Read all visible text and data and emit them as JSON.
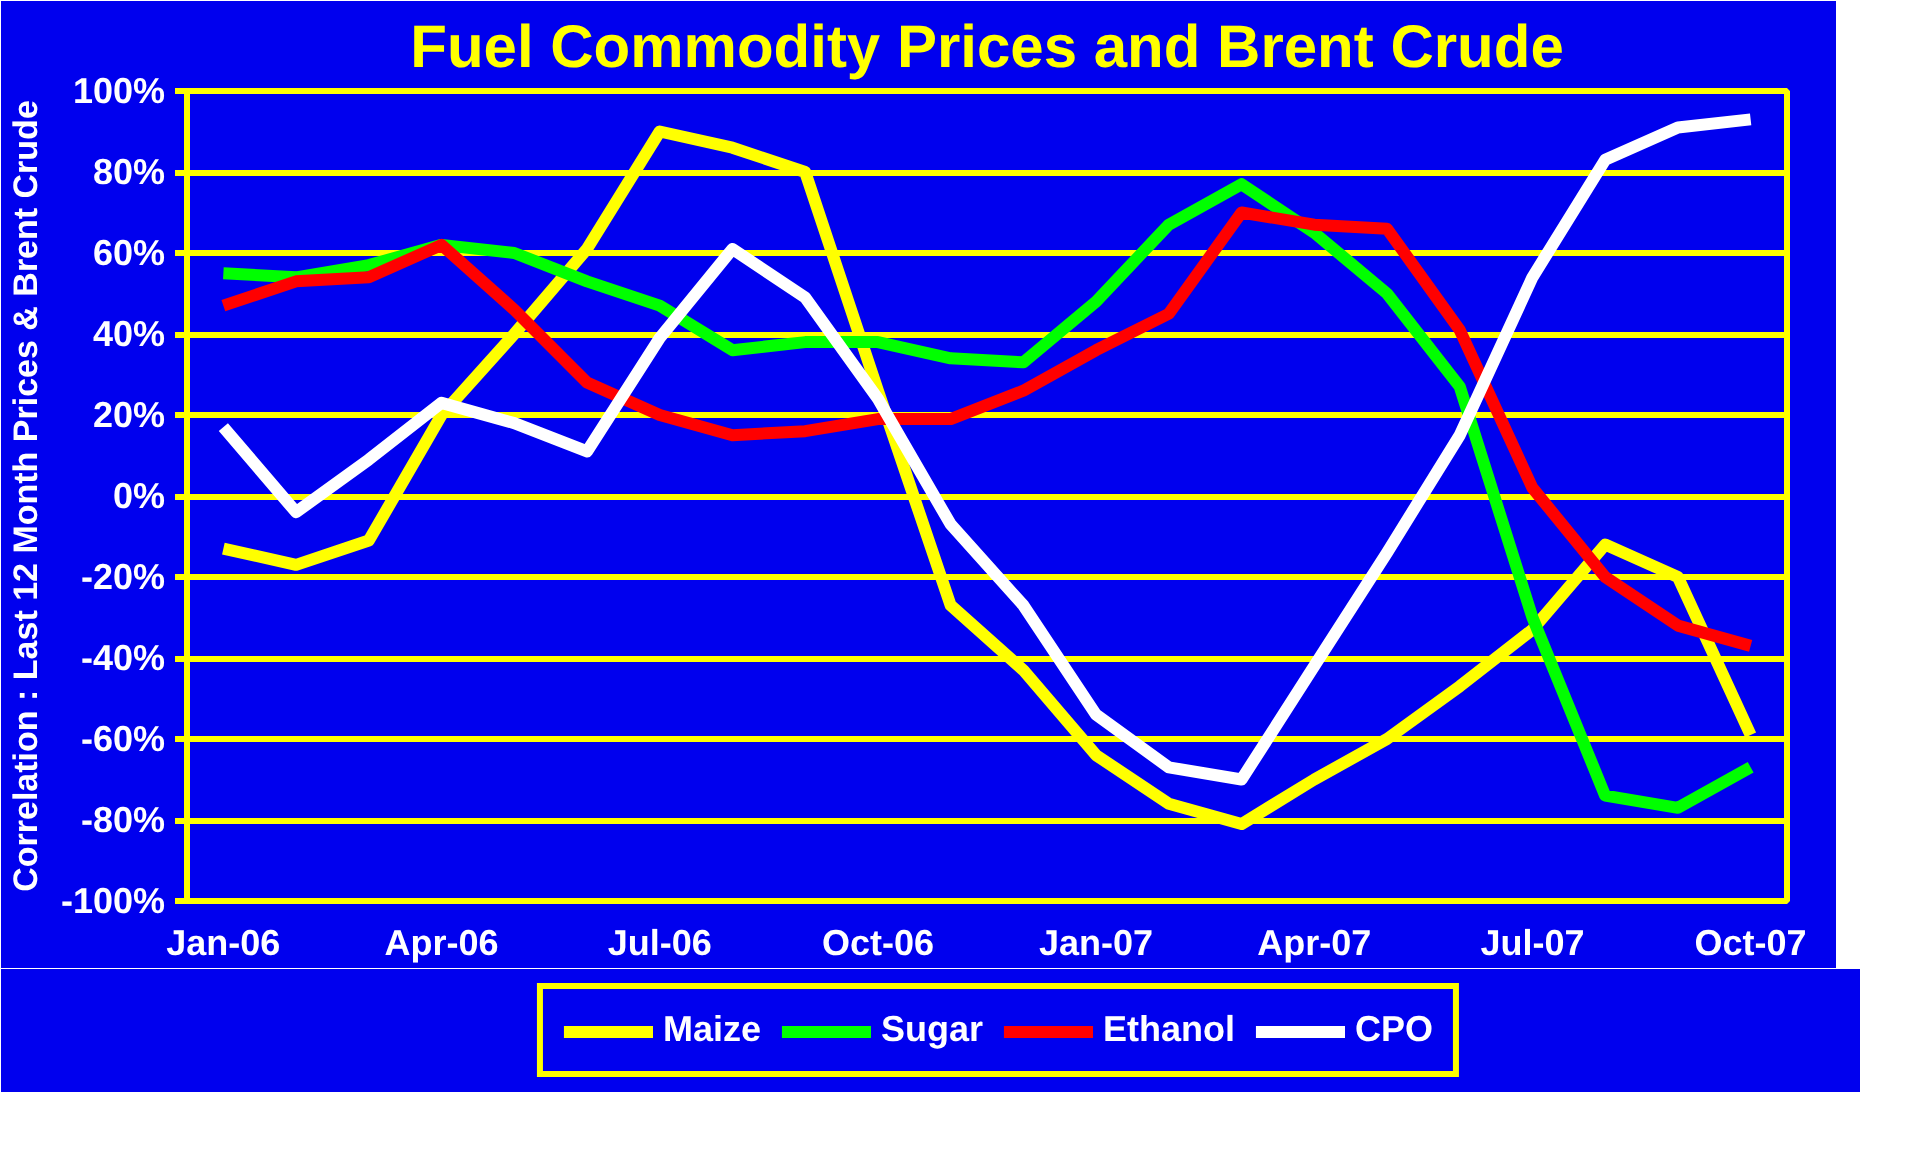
{
  "chart_data": {
    "type": "line",
    "title": "Fuel Commodity Prices and Brent Crude",
    "ylabel": "Correlation : Last 12 Month Prices & Brent Crude",
    "categories": [
      "Jan-06",
      null,
      null,
      "Apr-06",
      null,
      null,
      "Jul-06",
      null,
      null,
      "Oct-06",
      null,
      null,
      "Jan-07",
      null,
      null,
      "Apr-07",
      null,
      null,
      "Jul-07",
      null,
      null,
      "Oct-07"
    ],
    "series": [
      {
        "name": "Maize",
        "color": "#ffff00",
        "values": [
          -13,
          -17,
          -11,
          20,
          40,
          61,
          90,
          86,
          80,
          26,
          -27,
          -43,
          -64,
          -76,
          -81,
          -70,
          -60,
          -47,
          -33,
          -12,
          -20,
          -59
        ]
      },
      {
        "name": "Sugar",
        "color": "#00ff00",
        "values": [
          55,
          54,
          57,
          62,
          60,
          53,
          47,
          36,
          38,
          38,
          34,
          33,
          48,
          67,
          77,
          65,
          50,
          27,
          -30,
          -74,
          -77,
          -67
        ]
      },
      {
        "name": "Ethanol",
        "color": "#ff0000",
        "values": [
          47,
          53,
          54,
          62,
          46,
          28,
          20,
          15,
          16,
          19,
          19,
          26,
          36,
          45,
          70,
          67,
          66,
          41,
          2,
          -20,
          -32,
          -37
        ]
      },
      {
        "name": "CPO",
        "color": "#ffffff",
        "values": [
          17,
          -4,
          9,
          23,
          18,
          11,
          39,
          61,
          49,
          24,
          -7,
          -27,
          -54,
          -67,
          -70,
          -42,
          -14,
          15,
          54,
          83,
          91,
          93
        ]
      }
    ],
    "ylim": [
      -100,
      100
    ],
    "yticks": [
      {
        "value": -100,
        "label": "-100%"
      },
      {
        "value": -80,
        "label": "-80%"
      },
      {
        "value": -60,
        "label": "-60%"
      },
      {
        "value": -40,
        "label": "-40%"
      },
      {
        "value": -20,
        "label": "-20%"
      },
      {
        "value": 0,
        "label": "0%"
      },
      {
        "value": 20,
        "label": "20%"
      },
      {
        "value": 40,
        "label": "40%"
      },
      {
        "value": 60,
        "label": "60%"
      },
      {
        "value": 80,
        "label": "80%"
      },
      {
        "value": 100,
        "label": "100%"
      }
    ],
    "grid": "y",
    "legend": "bottom",
    "marker": "none",
    "line_style": "solid"
  }
}
